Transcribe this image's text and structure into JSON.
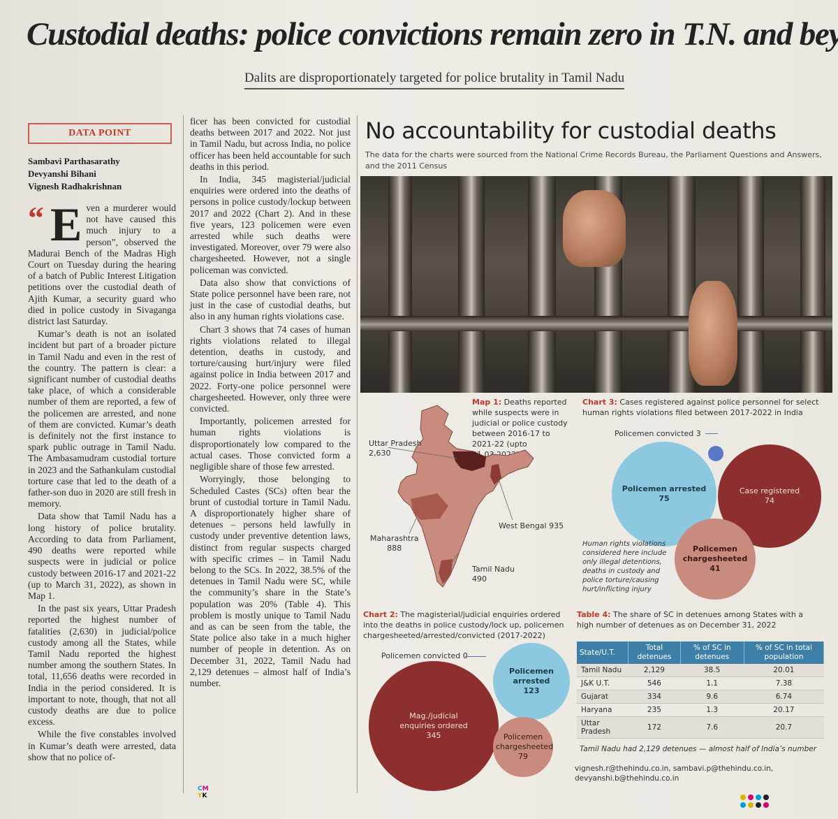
{
  "headline": "Custodial deaths: police convictions remain zero in T.N. and beyond",
  "subhead": "Dalits are disproportionately targeted for police brutality in Tamil Nadu",
  "column_tag": "DATA POINT",
  "authors": [
    "Sambavi Parthasarathy",
    "Devyanshi Bihani",
    "Vignesh Radhakrishnan"
  ],
  "article": {
    "quote_mark": "“",
    "dropcap": "E",
    "p1": "ven a murderer would not have caused this much injury to a person”, observed the Madurai Bench of the Madras High Court on Tuesday during the hearing of a batch of Public Interest Litigation petitions over the custodial death of Ajith Kumar, a security guard who died in police custody in Sivaganga district last Saturday.",
    "p2": "Kumar’s death is not an isolated incident but part of a broader picture in Tamil Nadu and even in the rest of the country. The pattern is clear: a significant number of custodial deaths take place, of which a considerable number of them are reported, a few of the policemen are arrested, and none of them are convicted. Kumar’s death is definitely not the first instance to spark public outrage in Tamil Nadu. The Ambasamudram custodial torture in 2023 and the Sathankulam custodial torture case that led to the death of a father-son duo in 2020 are still fresh in memory.",
    "p3": "Data show that Tamil Nadu has a long history of police brutality. According to data from Parliament, 490 deaths were reported while suspects were in judicial or police custody between 2016-17 and 2021-22 (up to March 31, 2022), as shown in Map 1.",
    "p4": "In the past six years, Uttar Pradesh reported the highest number of fatalities (2,630) in judicial/police custody among all the States, while Tamil Nadu reported the highest number among the southern States. In total, 11,656 deaths were recorded in India in the period considered. It is important to note, though, that not all custody deaths are due to police excess.",
    "p5": "While the five constables involved in Kumar’s death were arrested, data show that no police of-",
    "p6": "ficer has been convicted for custodial deaths between 2017 and 2022. Not just in Tamil Nadu, but across India, no police officer has been held accountable for such deaths in this period.",
    "p7": "In India, 345 magisterial/judicial enquiries were ordered into the deaths of persons in police custody/lockup between 2017 and 2022 (Chart 2). And in these five years, 123 policemen were even arrested while such deaths were investigated. Moreover, over 79 were also chargesheeted. However, not a single policeman was convicted.",
    "p8": "Data also show that convictions of State police personnel have been rare, not just in the case of custodial deaths, but also in any human rights violations case.",
    "p9": "Chart 3 shows that 74 cases of human rights violations related to illegal detention, deaths in custody, and torture/causing hurt/injury were filed against police in India between 2017 and 2022. Forty-one police personnel were chargesheeted. However, only three were convicted.",
    "p10": "Importantly, policemen arrested for human rights violations is disproportionately low compared to the actual cases. Those convicted form a negligible share of those few arrested.",
    "p11": "Worryingly, those belonging to Scheduled Castes (SCs) often bear the brunt of custodial torture in Tamil Nadu. A disproportionately higher share of detenues – persons held lawfully in custody under preventive detention laws, distinct from regular suspects charged with specific crimes – in Tamil Nadu belong to the SCs. In 2022, 38.5% of the detenues in Tamil Nadu were SC, while the community’s share in the State’s population was 20% (Table 4). This problem is mostly unique to Tamil Nadu and as can be seen from the table, the State police also take in a much higher number of people in detention. As on December 31, 2022, Tamil Nadu had 2,129 detenues – almost half of India’s number."
  },
  "infographic": {
    "title": "No accountability for custodial deaths",
    "source": "The data for the charts were sourced from the National Crime Records Bureau, the Parliament Questions and Answers, and the 2011 Census"
  },
  "map1": {
    "caption_label": "Map 1:",
    "caption": "Deaths reported while suspects were in judicial or police custody between 2016-17 to 2021-22 (upto 31.03.2022)",
    "labels": [
      {
        "state": "Uttar Pradesh",
        "value": "2,630"
      },
      {
        "state": "West Bengal",
        "value": "935"
      },
      {
        "state": "Maharashtra",
        "value": "888"
      },
      {
        "state": "Tamil Nadu",
        "value": "490"
      }
    ]
  },
  "chart3": {
    "caption_label": "Chart 3:",
    "caption": "Cases registered against police personnel for select human rights violations filed between 2017-2022 in India",
    "convicted_label": "Policemen convicted 3",
    "bubbles": [
      {
        "label": "Policemen arrested",
        "value": "75"
      },
      {
        "label": "Case registered",
        "value": "74"
      },
      {
        "label": "Policemen chargesheeted",
        "value": "41"
      }
    ],
    "note": "Human rights violations considered here include only illegal detentions, deaths in custody and police torture/causing hurt/inflicting injury"
  },
  "chart2": {
    "caption_label": "Chart 2:",
    "caption": "The magisterial/judicial enquiries ordered into the deaths in police custody/lock up, policemen chargesheeted/arrested/convicted (2017-2022)",
    "convicted_label": "Policemen convicted 0",
    "bubbles": [
      {
        "label": "Mag./judicial enquiries ordered",
        "value": "345"
      },
      {
        "label": "Policemen arrested",
        "value": "123"
      },
      {
        "label": "Policemen chargesheeted",
        "value": "79"
      }
    ]
  },
  "table4": {
    "caption_label": "Table 4:",
    "caption": "The share of SC in detenues among States with a high number of detenues as on December 31, 2022",
    "headers": [
      "State/U.T.",
      "Total detenues",
      "% of SC in detenues",
      "% of SC in total population"
    ],
    "rows": [
      [
        "Tamil Nadu",
        "2,129",
        "38.5",
        "20.01"
      ],
      [
        "J&K U.T.",
        "546",
        "1.1",
        "7.38"
      ],
      [
        "Gujarat",
        "334",
        "9.6",
        "6.74"
      ],
      [
        "Haryana",
        "235",
        "1.3",
        "20.17"
      ],
      [
        "Uttar Pradesh",
        "172",
        "7.6",
        "20.7"
      ]
    ],
    "note": "Tamil Nadu had 2,129 detenues — almost half of India’s number"
  },
  "emails": "vignesh.r@thehindu.co.in, sambavi.p@thehindu.co.in, devyanshi.b@thehindu.co.in",
  "cmyk": [
    "C",
    "M",
    "Y",
    "K"
  ],
  "colors": {
    "accent_red": "#c0392b",
    "bubble_blue": "#8cc8e0",
    "bubble_maroon": "#8e2f2f",
    "bubble_salmon": "#c98b7e",
    "table_header": "#3d7fa6"
  }
}
